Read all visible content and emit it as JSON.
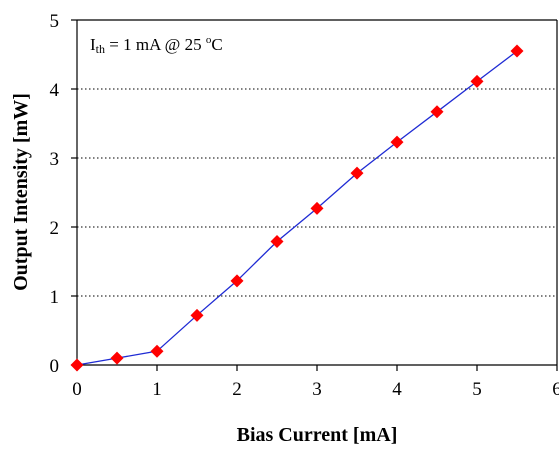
{
  "chart_data": {
    "type": "line",
    "title": "",
    "xlabel": "Bias Current [mA]",
    "ylabel": "Output Intensity [mW]",
    "xlim": [
      0,
      6
    ],
    "ylim": [
      0,
      5
    ],
    "x_ticks": [
      "0",
      "1",
      "2",
      "3",
      "4",
      "5",
      "6"
    ],
    "y_ticks": [
      "0",
      "1",
      "2",
      "3",
      "4",
      "5"
    ],
    "grid": "horizontal dotted",
    "legend": "none",
    "annotation": {
      "prefix": "I",
      "subscript": "th",
      "text": " = 1 mA @ 25 ",
      "superscript": "o",
      "unit": "C"
    },
    "series": [
      {
        "line_color": "#1f2bd4",
        "marker_color": "#ff0000",
        "marker": "diamond",
        "x": [
          0,
          0.5,
          1.0,
          1.5,
          2.0,
          2.5,
          3.0,
          3.5,
          4.0,
          4.5,
          5.0,
          5.5
        ],
        "y": [
          0.0,
          0.1,
          0.2,
          0.72,
          1.22,
          1.79,
          2.27,
          2.78,
          3.23,
          3.67,
          4.11,
          4.55
        ]
      }
    ]
  }
}
